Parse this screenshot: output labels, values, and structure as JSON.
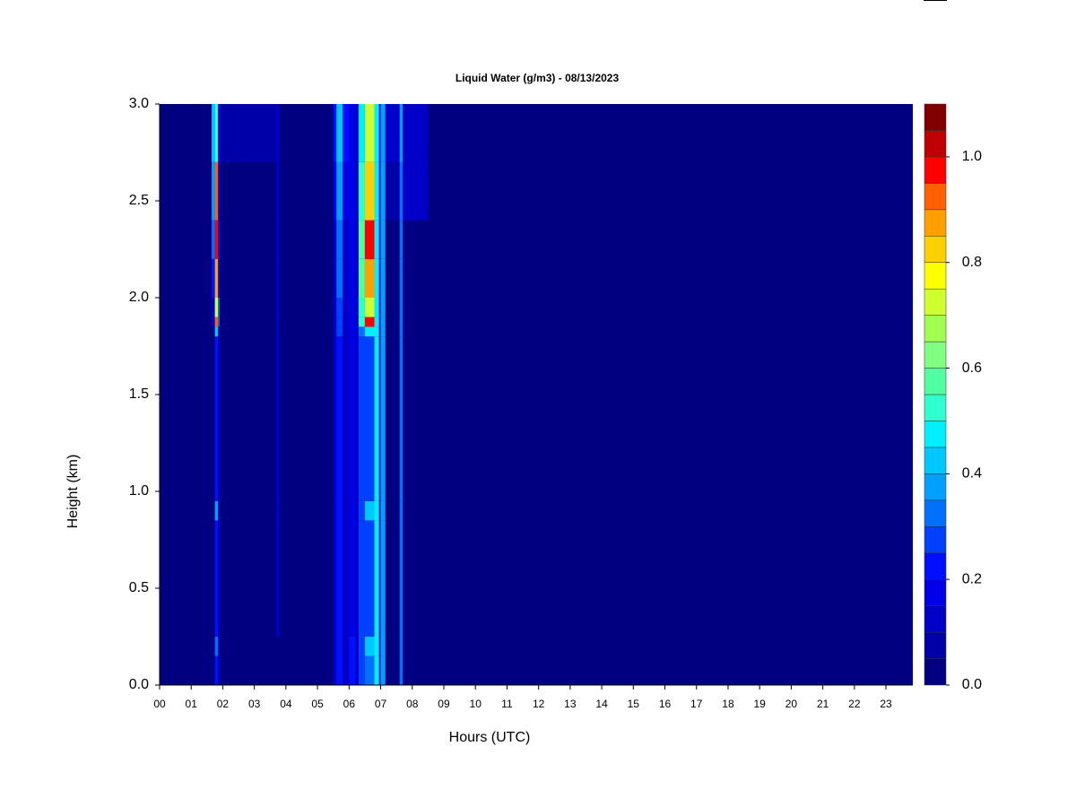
{
  "chart_data": {
    "type": "heatmap",
    "title": "Liquid Water (g/m3) - 08/13/2023",
    "xlabel": "Hours (UTC)",
    "ylabel": "Height (km)",
    "xlim": [
      0,
      23.85
    ],
    "ylim": [
      0,
      3
    ],
    "xticks": [
      {
        "value": 0,
        "label": "00"
      },
      {
        "value": 1,
        "label": "01"
      },
      {
        "value": 2,
        "label": "02"
      },
      {
        "value": 3,
        "label": "03"
      },
      {
        "value": 4,
        "label": "04"
      },
      {
        "value": 5,
        "label": "05"
      },
      {
        "value": 6,
        "label": "06"
      },
      {
        "value": 7,
        "label": "07"
      },
      {
        "value": 8,
        "label": "08"
      },
      {
        "value": 9,
        "label": "09"
      },
      {
        "value": 10,
        "label": "10"
      },
      {
        "value": 11,
        "label": "11"
      },
      {
        "value": 12,
        "label": "12"
      },
      {
        "value": 13,
        "label": "13"
      },
      {
        "value": 14,
        "label": "14"
      },
      {
        "value": 15,
        "label": "15"
      },
      {
        "value": 16,
        "label": "16"
      },
      {
        "value": 17,
        "label": "17"
      },
      {
        "value": 18,
        "label": "18"
      },
      {
        "value": 19,
        "label": "19"
      },
      {
        "value": 20,
        "label": "20"
      },
      {
        "value": 21,
        "label": "21"
      },
      {
        "value": 22,
        "label": "22"
      },
      {
        "value": 23,
        "label": "23"
      }
    ],
    "yticks": [
      {
        "value": 0,
        "label": "0.0"
      },
      {
        "value": 0.5,
        "label": "0.5"
      },
      {
        "value": 1,
        "label": "1.0"
      },
      {
        "value": 1.5,
        "label": "1.5"
      },
      {
        "value": 2,
        "label": "2.0"
      },
      {
        "value": 2.5,
        "label": "2.5"
      },
      {
        "value": 3,
        "label": "3.0"
      }
    ],
    "x_edges": [
      1.65,
      1.75,
      1.85,
      1.9,
      3.7,
      3.8,
      5.5,
      5.6,
      5.8,
      6.0,
      6.2,
      6.3,
      6.5,
      6.8,
      6.95,
      7.0,
      7.15,
      7.6,
      7.7,
      8.5
    ],
    "y_edges": [
      0,
      0.15,
      0.25,
      0.85,
      0.95,
      1.8,
      1.85,
      1.9,
      2.0,
      2.2,
      2.4,
      2.7,
      3.0
    ],
    "z": [
      [
        0,
        0.2,
        0.1,
        0,
        0,
        0,
        0.1,
        0.2,
        0.1,
        0.2,
        0.1,
        0.25,
        0.3,
        0.45,
        0.1,
        0.35,
        0,
        0.3,
        0
      ],
      [
        0,
        0.3,
        0.1,
        0,
        0,
        0,
        0.1,
        0.2,
        0.1,
        0.2,
        0.1,
        0.25,
        0.4,
        0.45,
        0.1,
        0.35,
        0,
        0.3,
        0
      ],
      [
        0,
        0.2,
        0.1,
        0,
        0.1,
        0,
        0.1,
        0.2,
        0.1,
        0.15,
        0.1,
        0.25,
        0.25,
        0.45,
        0.1,
        0.35,
        0,
        0.3,
        0
      ],
      [
        0,
        0.35,
        0.1,
        0,
        0.1,
        0,
        0.1,
        0.2,
        0.1,
        0.15,
        0.1,
        0.25,
        0.4,
        0.45,
        0.1,
        0.35,
        0,
        0.3,
        0
      ],
      [
        0,
        0.2,
        0.1,
        0,
        0.1,
        0,
        0.1,
        0.2,
        0.1,
        0.15,
        0.1,
        0.25,
        0.25,
        0.45,
        0.1,
        0.35,
        0,
        0.3,
        0
      ],
      [
        0,
        0.4,
        0.1,
        0,
        0.1,
        0,
        0.1,
        0.25,
        0.1,
        0.15,
        0.1,
        0.3,
        0.45,
        0.45,
        0.1,
        0.35,
        0,
        0.3,
        0
      ],
      [
        0.1,
        0.9,
        0.3,
        0,
        0.1,
        0,
        0.1,
        0.25,
        0.1,
        0.15,
        0.1,
        0.5,
        0.95,
        0.45,
        0.1,
        0.35,
        0,
        0.3,
        0
      ],
      [
        0.1,
        0.7,
        0.3,
        0,
        0.1,
        0,
        0.1,
        0.25,
        0.1,
        0.15,
        0.1,
        0.5,
        0.7,
        0.45,
        0.1,
        0.35,
        0,
        0.3,
        0
      ],
      [
        0.2,
        0.85,
        0.2,
        0,
        0.1,
        0,
        0.1,
        0.3,
        0.1,
        0.15,
        0.1,
        0.55,
        0.85,
        0.45,
        0.1,
        0.35,
        0,
        0.3,
        0
      ],
      [
        0.3,
        0.95,
        0.2,
        0,
        0.1,
        0,
        0.1,
        0.3,
        0.1,
        0.15,
        0.1,
        0.55,
        0.95,
        0.45,
        0.1,
        0.35,
        0,
        0.3,
        0
      ],
      [
        0.35,
        0.9,
        0.2,
        0,
        0.1,
        0,
        0.15,
        0.35,
        0.15,
        0.15,
        0.1,
        0.5,
        0.8,
        0.45,
        0.1,
        0.35,
        0.05,
        0.3,
        0.1
      ],
      [
        0.4,
        0.5,
        0.15,
        0.05,
        0.1,
        0,
        0.2,
        0.4,
        0.2,
        0.15,
        0.1,
        0.45,
        0.7,
        0.45,
        0.1,
        0.35,
        0.1,
        0.35,
        0.1
      ]
    ],
    "levels": [
      0,
      0.05,
      0.1,
      0.15,
      0.2,
      0.25,
      0.3,
      0.35,
      0.4,
      0.45,
      0.5,
      0.55,
      0.6,
      0.65,
      0.7,
      0.75,
      0.8,
      0.85,
      0.9,
      0.95,
      1.0,
      1.05,
      1.1
    ],
    "colors": [
      "#000080",
      "#0000a8",
      "#0000c8",
      "#0000e8",
      "#0010ff",
      "#0040ff",
      "#0070ff",
      "#00a0ff",
      "#00c8ff",
      "#00f0ff",
      "#30ffd0",
      "#50ffa0",
      "#80ff80",
      "#a0ff50",
      "#d0ff30",
      "#ffff00",
      "#ffd000",
      "#ffa000",
      "#ff6000",
      "#ff0000",
      "#c00000",
      "#800000"
    ],
    "cticks": [
      {
        "value": 0,
        "label": "0.0"
      },
      {
        "value": 0.2,
        "label": "0.2"
      },
      {
        "value": 0.4,
        "label": "0.4"
      },
      {
        "value": 0.6,
        "label": "0.6"
      },
      {
        "value": 0.8,
        "label": "0.8"
      },
      {
        "value": 1.0,
        "label": "1.0"
      }
    ]
  }
}
